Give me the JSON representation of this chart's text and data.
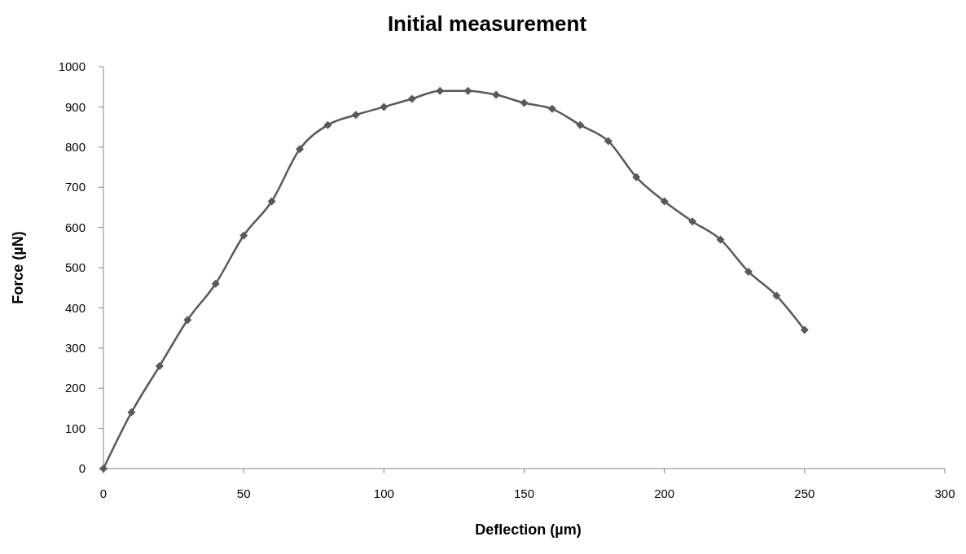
{
  "chart_data": {
    "type": "line",
    "title": "Initial measurement",
    "xlabel": "Deflection (µm)",
    "ylabel": "Force (µN)",
    "x": [
      0,
      10,
      20,
      30,
      40,
      50,
      60,
      70,
      80,
      90,
      100,
      110,
      120,
      130,
      140,
      150,
      160,
      170,
      180,
      190,
      200,
      210,
      220,
      230,
      240,
      250
    ],
    "series": [
      {
        "color": "#595959",
        "values": [
          0,
          140,
          255,
          370,
          460,
          580,
          665,
          795,
          855,
          880,
          900,
          920,
          940,
          940,
          930,
          910,
          895,
          855,
          815,
          725,
          665,
          615,
          570,
          490,
          430,
          345
        ]
      }
    ],
    "xlim": [
      0,
      300
    ],
    "xticks": [
      0,
      50,
      100,
      150,
      200,
      250,
      300
    ],
    "ylim": [
      0,
      1000
    ],
    "yticks": [
      0,
      100,
      200,
      300,
      400,
      500,
      600,
      700,
      800,
      900,
      1000
    ],
    "grid": false,
    "marker": "diamond",
    "line_style": "solid"
  }
}
